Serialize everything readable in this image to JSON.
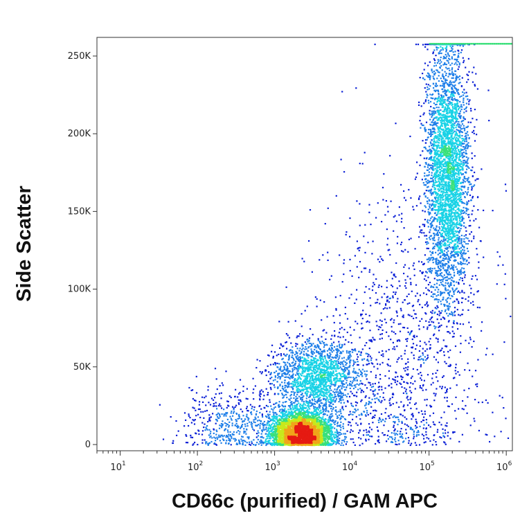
{
  "chart_data": {
    "type": "scatter",
    "subtype": "flow-cytometry-density-dot-plot",
    "xlabel": "CD66c (purified) / GAM APC",
    "ylabel": "Side Scatter",
    "x_scale": "log",
    "xlim": [
      5,
      1200000
    ],
    "ylim": [
      -4000,
      262000
    ],
    "x_ticks": [
      {
        "value": 10,
        "base": "10",
        "exp": "1"
      },
      {
        "value": 100,
        "base": "10",
        "exp": "2"
      },
      {
        "value": 1000,
        "base": "10",
        "exp": "3"
      },
      {
        "value": 10000,
        "base": "10",
        "exp": "4"
      },
      {
        "value": 100000,
        "base": "10",
        "exp": "5"
      },
      {
        "value": 1000000,
        "base": "10",
        "exp": "6"
      }
    ],
    "y_ticks": [
      {
        "value": 0,
        "label": "0"
      },
      {
        "value": 50000,
        "label": "50K"
      },
      {
        "value": 100000,
        "label": "100K"
      },
      {
        "value": 150000,
        "label": "150K"
      },
      {
        "value": 200000,
        "label": "200K"
      },
      {
        "value": 250000,
        "label": "250K"
      }
    ],
    "grid": false,
    "legend": "none",
    "color_scale": [
      "#0a1fd6",
      "#1e7fe8",
      "#19d3e6",
      "#39e07a",
      "#c8e81c",
      "#f0a51a",
      "#e51a12"
    ],
    "populations": [
      {
        "x_center": 2200,
        "y_center": 8000,
        "x_spread_decades": 0.2,
        "y_spread": 7000,
        "count": 3800
      },
      {
        "x_center": 3500,
        "y_center": 45000,
        "x_spread_decades": 0.28,
        "y_spread": 11000,
        "count": 1700
      },
      {
        "x_center": 170000,
        "y_center": 175000,
        "x_spread_decades": 0.14,
        "y_spread": 42000,
        "count": 3600
      },
      {
        "x_center": 40000,
        "y_center": 55000,
        "x_spread_decades": 0.55,
        "y_spread": 55000,
        "count": 1200
      },
      {
        "x_center": 300,
        "y_center": 15000,
        "x_spread_decades": 0.35,
        "y_spread": 12000,
        "count": 500
      }
    ]
  }
}
